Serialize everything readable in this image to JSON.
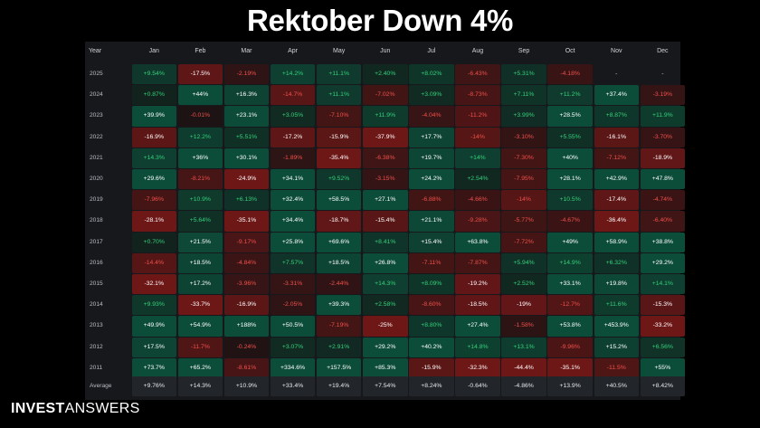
{
  "title": "Rektober Down 4%",
  "logo": {
    "bold": "INVEST",
    "light": "ANSWERS"
  },
  "colors": {
    "background": "#000000",
    "panel": "#16181c",
    "pos_text": "#33d17a",
    "neg_text": "#f0504a",
    "pos_strong_bg": "#0c4d39",
    "neg_strong_bg": "#6e1717",
    "neutral_bg": "#22252a"
  },
  "chart_data": {
    "type": "heatmap",
    "title": "Rektober Down 4%",
    "row_header": "Year",
    "columns": [
      "Jan",
      "Feb",
      "Mar",
      "Apr",
      "May",
      "Jun",
      "Jul",
      "Aug",
      "Sep",
      "Oct",
      "Nov",
      "Dec"
    ],
    "rows": [
      {
        "label": "2025",
        "values": [
          "+9.54%",
          "-17.5%",
          "-2.19%",
          "+14.2%",
          "+11.1%",
          "+2.40%",
          "+8.02%",
          "-6.43%",
          "+5.31%",
          "-4.18%",
          "-",
          "-"
        ]
      },
      {
        "label": "2024",
        "values": [
          "+0.87%",
          "+44%",
          "+16.3%",
          "-14.7%",
          "+11.1%",
          "-7.02%",
          "+3.09%",
          "-8.73%",
          "+7.11%",
          "+11.2%",
          "+37.4%",
          "-3.19%"
        ]
      },
      {
        "label": "2023",
        "values": [
          "+39.9%",
          "-0.01%",
          "+23.1%",
          "+3.05%",
          "-7.10%",
          "+11.9%",
          "-4.04%",
          "-11.2%",
          "+3.99%",
          "+28.5%",
          "+8.87%",
          "+11.9%"
        ]
      },
      {
        "label": "2022",
        "values": [
          "-16.9%",
          "+12.2%",
          "+5.51%",
          "-17.2%",
          "-15.9%",
          "-37.9%",
          "+17.7%",
          "-14%",
          "-3.10%",
          "+5.55%",
          "-16.1%",
          "-3.70%"
        ]
      },
      {
        "label": "2021",
        "values": [
          "+14.3%",
          "+36%",
          "+30.1%",
          "-1.89%",
          "-35.4%",
          "-6.38%",
          "+19.7%",
          "+14%",
          "-7.30%",
          "+40%",
          "-7.12%",
          "-18.9%"
        ]
      },
      {
        "label": "2020",
        "values": [
          "+29.6%",
          "-8.21%",
          "-24.9%",
          "+34.1%",
          "+9.52%",
          "-3.15%",
          "+24.2%",
          "+2.54%",
          "-7.95%",
          "+28.1%",
          "+42.9%",
          "+47.8%"
        ]
      },
      {
        "label": "2019",
        "values": [
          "-7.96%",
          "+10.9%",
          "+6.13%",
          "+32.4%",
          "+58.5%",
          "+27.1%",
          "-6.88%",
          "-4.66%",
          "-14%",
          "+10.5%",
          "-17.4%",
          "-4.74%"
        ]
      },
      {
        "label": "2018",
        "values": [
          "-28.1%",
          "+5.64%",
          "-35.1%",
          "+34.4%",
          "-18.7%",
          "-15.4%",
          "+21.1%",
          "-9.28%",
          "-5.77%",
          "-4.67%",
          "-36.4%",
          "-6.40%"
        ]
      },
      {
        "label": "2017",
        "values": [
          "+0.70%",
          "+21.5%",
          "-9.17%",
          "+25.8%",
          "+69.6%",
          "+8.41%",
          "+15.4%",
          "+63.8%",
          "-7.72%",
          "+49%",
          "+58.9%",
          "+38.8%"
        ]
      },
      {
        "label": "2016",
        "values": [
          "-14.4%",
          "+18.5%",
          "-4.84%",
          "+7.57%",
          "+18.5%",
          "+26.8%",
          "-7.11%",
          "-7.87%",
          "+5.94%",
          "+14.9%",
          "+6.32%",
          "+29.2%"
        ]
      },
      {
        "label": "2015",
        "values": [
          "-32.1%",
          "+17.2%",
          "-3.96%",
          "-3.31%",
          "-2.44%",
          "+14.3%",
          "+8.09%",
          "-19.2%",
          "+2.52%",
          "+33.1%",
          "+19.8%",
          "+14.1%"
        ]
      },
      {
        "label": "2014",
        "values": [
          "+9.93%",
          "-33.7%",
          "-16.9%",
          "-2.05%",
          "+39.3%",
          "+2.58%",
          "-8.60%",
          "-18.5%",
          "-19%",
          "-12.7%",
          "+11.6%",
          "-15.3%"
        ]
      },
      {
        "label": "2013",
        "values": [
          "+49.9%",
          "+54.9%",
          "+188%",
          "+50.5%",
          "-7.19%",
          "-25%",
          "+8.80%",
          "+27.4%",
          "-1.58%",
          "+53.8%",
          "+453.9%",
          "-33.2%"
        ]
      },
      {
        "label": "2012",
        "values": [
          "+17.5%",
          "-11.7%",
          "-0.24%",
          "+3.07%",
          "+2.91%",
          "+29.2%",
          "+40.2%",
          "+14.8%",
          "+13.1%",
          "-9.96%",
          "+15.2%",
          "+6.56%"
        ]
      },
      {
        "label": "2011",
        "values": [
          "+73.7%",
          "+65.2%",
          "-8.61%",
          "+334.6%",
          "+157.5%",
          "+85.3%",
          "-15.9%",
          "-32.3%",
          "-44.4%",
          "-35.1%",
          "-11.5%",
          "+55%"
        ]
      }
    ],
    "average": {
      "label": "Average",
      "values": [
        "+9.76%",
        "+14.3%",
        "+10.9%",
        "+33.4%",
        "+19.4%",
        "+7.54%",
        "+8.24%",
        "-0.64%",
        "-4.86%",
        "+13.9%",
        "+40.5%",
        "+8.42%"
      ]
    }
  }
}
